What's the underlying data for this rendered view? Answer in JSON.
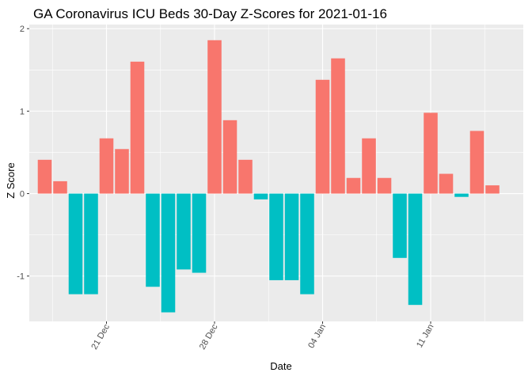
{
  "chart_data": {
    "type": "bar",
    "title": "GA Coronavirus ICU Beds 30-Day Z-Scores for 2021-01-16",
    "xlabel": "Date",
    "ylabel": "Z Score",
    "ylim": [
      -1.55,
      2.05
    ],
    "yticks": [
      {
        "value": -1,
        "label": "-1"
      },
      {
        "value": 0,
        "label": "0"
      },
      {
        "value": 1,
        "label": "1"
      },
      {
        "value": 2,
        "label": "2"
      }
    ],
    "xticks": [
      {
        "date": "2020-12-21",
        "label": "21 Dec"
      },
      {
        "date": "2020-12-28",
        "label": "28 Dec"
      },
      {
        "date": "2021-01-04",
        "label": "04 Jan"
      },
      {
        "date": "2021-01-11",
        "label": "11 Jan"
      }
    ],
    "x_range": [
      "2020-12-16",
      "2021-01-17"
    ],
    "grid": true,
    "legend": "none",
    "colors": {
      "positive": "#F8766D",
      "negative": "#00BFC4",
      "panel": "#EBEBEB",
      "grid": "#FFFFFF"
    },
    "bars": [
      {
        "date": "2020-12-17",
        "value": 0.41
      },
      {
        "date": "2020-12-18",
        "value": 0.15
      },
      {
        "date": "2020-12-19",
        "value": -1.22
      },
      {
        "date": "2020-12-20",
        "value": -1.22
      },
      {
        "date": "2020-12-21",
        "value": 0.67
      },
      {
        "date": "2020-12-22",
        "value": 0.54
      },
      {
        "date": "2020-12-23",
        "value": 1.6
      },
      {
        "date": "2020-12-24",
        "value": -1.13
      },
      {
        "date": "2020-12-25",
        "value": -1.44
      },
      {
        "date": "2020-12-26",
        "value": -0.92
      },
      {
        "date": "2020-12-27",
        "value": -0.96
      },
      {
        "date": "2020-12-28",
        "value": 1.86
      },
      {
        "date": "2020-12-29",
        "value": 0.89
      },
      {
        "date": "2020-12-30",
        "value": 0.41
      },
      {
        "date": "2020-12-31",
        "value": -0.07
      },
      {
        "date": "2021-01-01",
        "value": -1.05
      },
      {
        "date": "2021-01-02",
        "value": -1.05
      },
      {
        "date": "2021-01-03",
        "value": -1.22
      },
      {
        "date": "2021-01-04",
        "value": 1.38
      },
      {
        "date": "2021-01-05",
        "value": 1.64
      },
      {
        "date": "2021-01-06",
        "value": 0.19
      },
      {
        "date": "2021-01-07",
        "value": 0.67
      },
      {
        "date": "2021-01-08",
        "value": 0.19
      },
      {
        "date": "2021-01-09",
        "value": -0.78
      },
      {
        "date": "2021-01-10",
        "value": -1.35
      },
      {
        "date": "2021-01-11",
        "value": 0.98
      },
      {
        "date": "2021-01-12",
        "value": 0.24
      },
      {
        "date": "2021-01-13",
        "value": -0.04
      },
      {
        "date": "2021-01-14",
        "value": 0.76
      },
      {
        "date": "2021-01-15",
        "value": 0.1
      }
    ]
  }
}
